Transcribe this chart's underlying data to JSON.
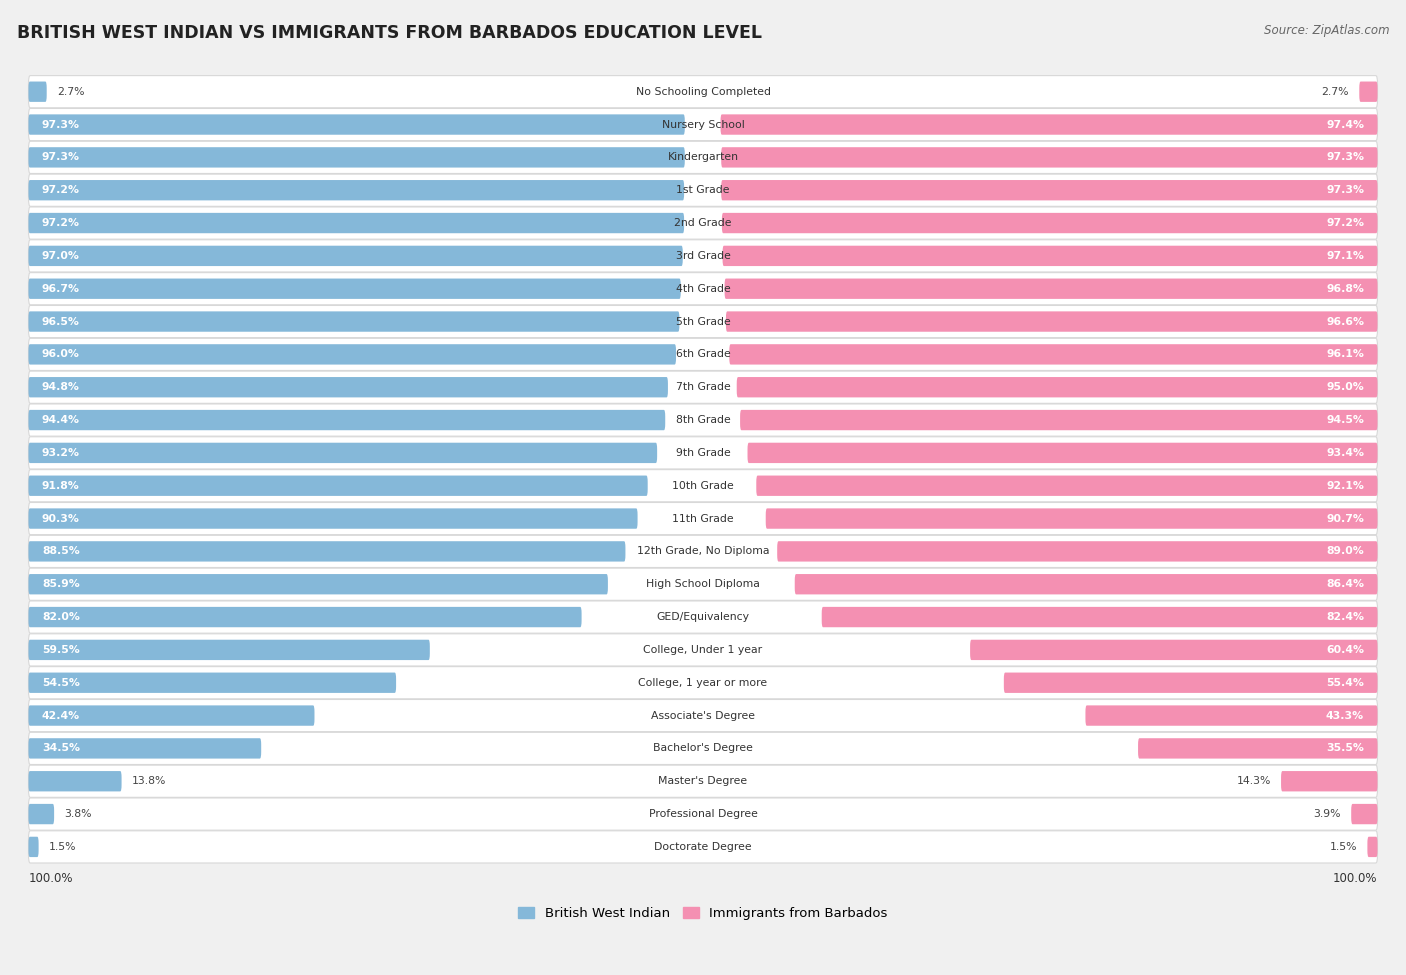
{
  "title": "BRITISH WEST INDIAN VS IMMIGRANTS FROM BARBADOS EDUCATION LEVEL",
  "source": "Source: ZipAtlas.com",
  "categories": [
    "No Schooling Completed",
    "Nursery School",
    "Kindergarten",
    "1st Grade",
    "2nd Grade",
    "3rd Grade",
    "4th Grade",
    "5th Grade",
    "6th Grade",
    "7th Grade",
    "8th Grade",
    "9th Grade",
    "10th Grade",
    "11th Grade",
    "12th Grade, No Diploma",
    "High School Diploma",
    "GED/Equivalency",
    "College, Under 1 year",
    "College, 1 year or more",
    "Associate's Degree",
    "Bachelor's Degree",
    "Master's Degree",
    "Professional Degree",
    "Doctorate Degree"
  ],
  "bwi_values": [
    2.7,
    97.3,
    97.3,
    97.2,
    97.2,
    97.0,
    96.7,
    96.5,
    96.0,
    94.8,
    94.4,
    93.2,
    91.8,
    90.3,
    88.5,
    85.9,
    82.0,
    59.5,
    54.5,
    42.4,
    34.5,
    13.8,
    3.8,
    1.5
  ],
  "barb_values": [
    2.7,
    97.4,
    97.3,
    97.3,
    97.2,
    97.1,
    96.8,
    96.6,
    96.1,
    95.0,
    94.5,
    93.4,
    92.1,
    90.7,
    89.0,
    86.4,
    82.4,
    60.4,
    55.4,
    43.3,
    35.5,
    14.3,
    3.9,
    1.5
  ],
  "blue_color": "#85b8d9",
  "pink_color": "#f490b2",
  "bg_color": "#f0f0f0",
  "bar_bg_color": "#ffffff",
  "row_line_color": "#d8d8d8",
  "legend_label_bwi": "British West Indian",
  "legend_label_bar": "Immigrants from Barbados",
  "axis_label_left": "100.0%",
  "axis_label_right": "100.0%",
  "value_threshold_inside": 20
}
